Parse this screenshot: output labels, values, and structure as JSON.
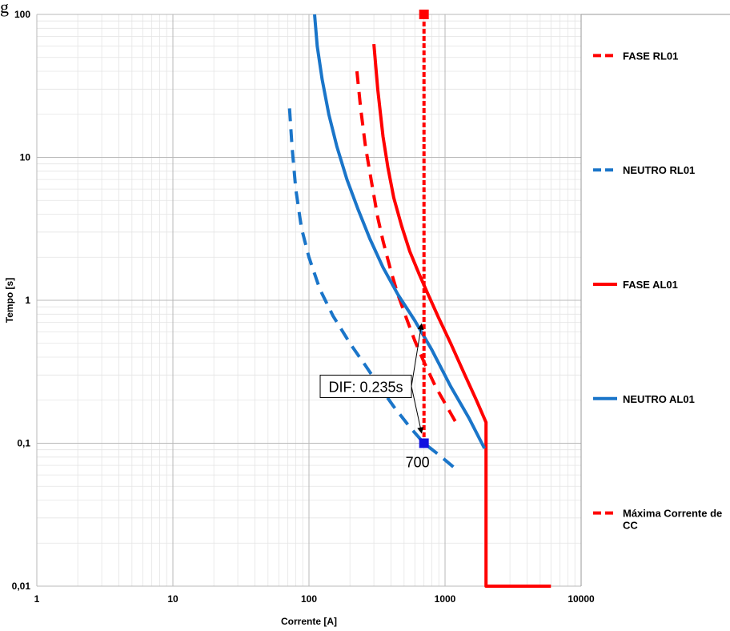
{
  "page": {
    "caption_fragment": "g"
  },
  "chart_data": {
    "type": "line",
    "xscale": "log",
    "yscale": "log",
    "xlim": [
      1,
      10000
    ],
    "ylim": [
      0.01,
      100
    ],
    "xlabel": "Corrente [A]",
    "ylabel": "Tempo [s]",
    "xticks": [
      1,
      10,
      100,
      1000,
      10000
    ],
    "xtick_labels": [
      "1",
      "10",
      "100",
      "1000",
      "10000"
    ],
    "yticks": [
      0.01,
      0.1,
      1,
      10,
      100
    ],
    "ytick_labels": [
      "0,01",
      "0,1",
      "1",
      "10",
      "100"
    ],
    "grid": true,
    "legend_position": "right",
    "series": [
      {
        "name": "FASE RL01",
        "color": "#ff0000",
        "style": "dashed",
        "x": [
          225,
          240,
          260,
          290,
          320,
          350,
          400,
          450,
          520,
          600,
          700,
          850,
          1000,
          1200
        ],
        "y": [
          40,
          22,
          12,
          6.5,
          3.8,
          2.6,
          1.6,
          1.1,
          0.75,
          0.52,
          0.37,
          0.25,
          0.19,
          0.14
        ]
      },
      {
        "name": "NEUTRO RL01",
        "color": "#1a75c9",
        "style": "dashed",
        "x": [
          72,
          75,
          80,
          88,
          100,
          120,
          150,
          200,
          260,
          330,
          420,
          550,
          700,
          900,
          1200
        ],
        "y": [
          22,
          12,
          6,
          3.2,
          2,
          1.2,
          0.78,
          0.5,
          0.35,
          0.25,
          0.18,
          0.13,
          0.1,
          0.083,
          0.066
        ]
      },
      {
        "name": "FASE AL01",
        "color": "#ff0000",
        "style": "solid",
        "x": [
          300,
          320,
          350,
          380,
          420,
          480,
          550,
          650,
          750,
          900,
          1100,
          1400,
          1700,
          2000,
          2000,
          2000,
          6000
        ],
        "y": [
          62,
          30,
          14,
          8.5,
          5.2,
          3.3,
          2.2,
          1.5,
          1.1,
          0.75,
          0.5,
          0.3,
          0.2,
          0.14,
          0.1,
          0.01,
          0.01
        ]
      },
      {
        "name": "NEUTRO AL01",
        "color": "#1a75c9",
        "style": "solid",
        "x": [
          110,
          115,
          125,
          140,
          160,
          190,
          230,
          280,
          350,
          450,
          600,
          800,
          1100,
          1500,
          1950
        ],
        "y": [
          100,
          60,
          35,
          20,
          12,
          7,
          4.3,
          2.7,
          1.7,
          1.1,
          0.72,
          0.45,
          0.25,
          0.15,
          0.092
        ]
      },
      {
        "name": "Máxima Corrente de CC",
        "color": "#ff0000",
        "style": "dotted",
        "x": [
          700,
          700
        ],
        "y": [
          100,
          0.1
        ]
      }
    ],
    "markers": [
      {
        "x": 700,
        "y": 100,
        "color": "#ff0000"
      },
      {
        "x": 700,
        "y": 0.1,
        "color": "#1010e0",
        "label": "700"
      }
    ],
    "annotation": {
      "text": "DIF: 0.235s",
      "anchor_x": 280,
      "anchor_y": 0.25,
      "arrow_targets": [
        {
          "x": 700,
          "y": 0.7
        },
        {
          "x": 700,
          "y": 0.115
        }
      ]
    }
  }
}
